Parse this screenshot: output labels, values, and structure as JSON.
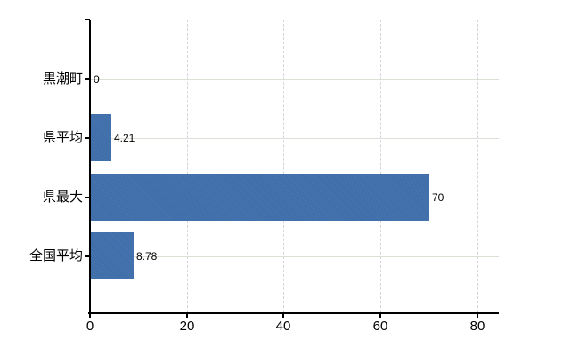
{
  "chart_data": {
    "type": "bar",
    "orientation": "horizontal",
    "title": "",
    "categories": [
      "黒潮町",
      "県平均",
      "県最大",
      "全国平均"
    ],
    "values": [
      0,
      4.21,
      70,
      8.78
    ],
    "value_labels": [
      "0",
      "4.21",
      "70",
      "8.78"
    ],
    "x_ticks": [
      0,
      20,
      40,
      60,
      80
    ],
    "x_tick_labels": [
      "0",
      "20",
      "40",
      "60",
      "80"
    ],
    "xlim": [
      0,
      84.5
    ],
    "grid": true,
    "legend": false,
    "colors": {
      "bar": "#3d6ca5",
      "bar_alt": "#4675b1",
      "h_grid": "#d9e0d5",
      "v_grid": "#d9d2d9",
      "top_border": "#d6dbd2",
      "axis": "#000000",
      "text": "#000000",
      "background": "#ffffff"
    }
  }
}
